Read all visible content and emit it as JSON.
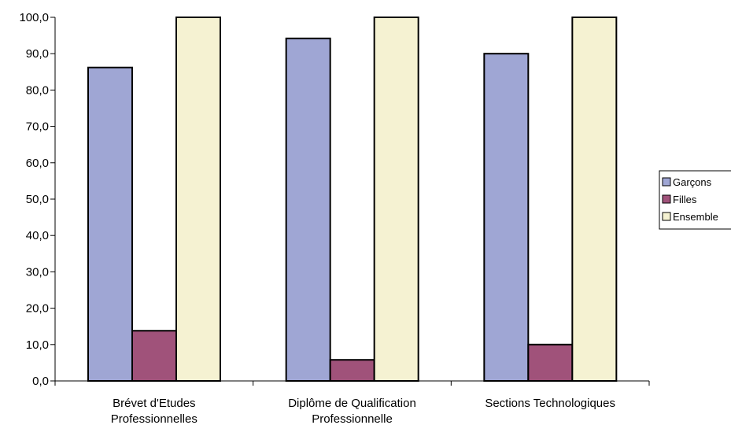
{
  "chart_data": {
    "type": "bar",
    "categories": [
      [
        "Brévet d'Etudes",
        "Professionnelles"
      ],
      [
        "Diplôme de Qualification",
        "Professionnelle"
      ],
      [
        "Sections Technologiques"
      ]
    ],
    "series": [
      {
        "name": "Garçons",
        "values": [
          86.2,
          94.2,
          90.0
        ],
        "color": "#9fa6d4"
      },
      {
        "name": "Filles",
        "values": [
          13.8,
          5.8,
          10.0
        ],
        "color": "#a0527a"
      },
      {
        "name": "Ensemble",
        "values": [
          100.0,
          100.0,
          100.0
        ],
        "color": "#f5f2d2"
      }
    ],
    "ylim": [
      0,
      100
    ],
    "yticks": [
      "0,0",
      "10,0",
      "20,0",
      "30,0",
      "40,0",
      "50,0",
      "60,0",
      "70,0",
      "80,0",
      "90,0",
      "100,0"
    ],
    "legend_position": "right",
    "grid": false
  }
}
